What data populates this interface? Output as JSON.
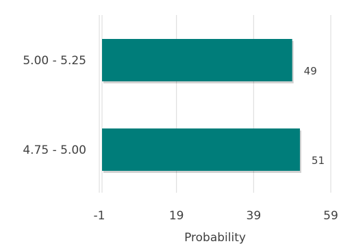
{
  "chart_data": {
    "type": "bar",
    "orientation": "horizontal",
    "categories": [
      "5.00 - 5.25",
      "4.75 - 5.00"
    ],
    "values": [
      49,
      51
    ],
    "data_labels": [
      "49",
      "51"
    ],
    "xlabel": "Probability",
    "xlim": [
      -1,
      59
    ],
    "xticks": [
      -1,
      19,
      39,
      59
    ],
    "xtick_labels": [
      "-1",
      "19",
      "39",
      "59"
    ],
    "grid": "vertical",
    "legend": "none",
    "colors": {
      "bar": "#007D7A",
      "grid": "#D9D9D9",
      "text": "#404040"
    }
  }
}
